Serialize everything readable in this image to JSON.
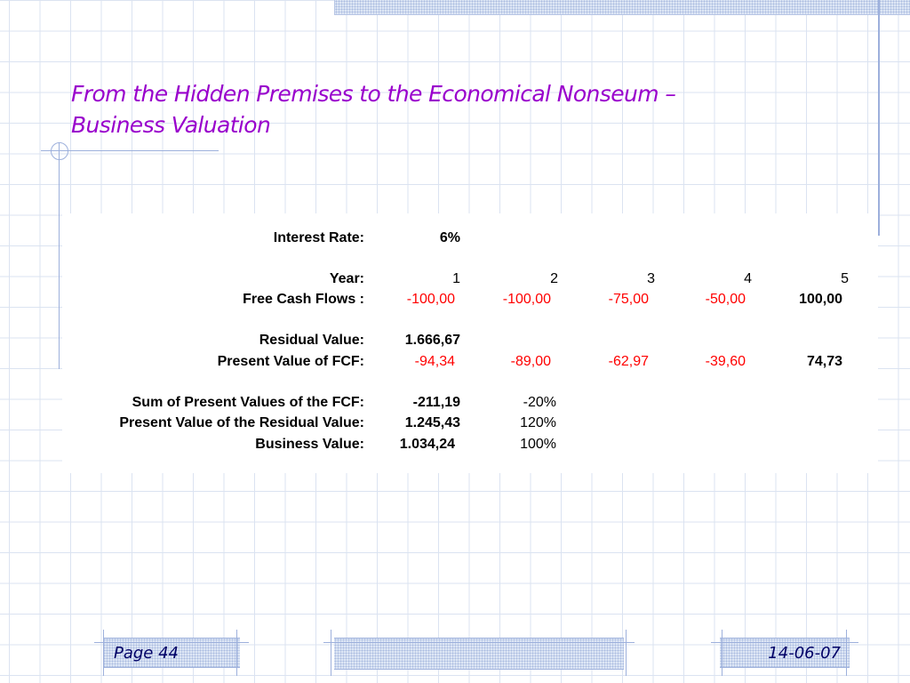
{
  "slide": {
    "title_line1": "From the Hidden Premises to the Economical Nonseum –",
    "title_line2": "Business Valuation"
  },
  "valuation": {
    "interest_rate": {
      "label": "Interest Rate:",
      "value": "6%"
    },
    "year": {
      "label": "Year:",
      "values": [
        "1",
        "2",
        "3",
        "4",
        "5"
      ]
    },
    "free_cash_flows": {
      "label": "Free Cash Flows :",
      "values": [
        "-100,00",
        "-100,00",
        "-75,00",
        "-50,00",
        "100,00"
      ]
    },
    "residual_value": {
      "label": "Residual Value:",
      "value": "1.666,67"
    },
    "present_value_fcf": {
      "label": "Present Value of FCF:",
      "values": [
        "-94,34",
        "-89,00",
        "-62,97",
        "-39,60",
        "74,73"
      ]
    },
    "sum_pv_fcf": {
      "label": "Sum of Present Values of the FCF:",
      "value": "-211,19",
      "percent": "-20%"
    },
    "pv_residual": {
      "label": "Present Value of the Residual Value:",
      "value": "1.245,43",
      "percent": "120%"
    },
    "business_value": {
      "label": "Business Value:",
      "value": "1.034,24",
      "percent": "100%"
    }
  },
  "footer": {
    "page_label": "Page 44",
    "date": "14-06-07"
  },
  "colors": {
    "title": "#9900cc",
    "negative": "#ff0000",
    "grid": "#dbe3f1",
    "accent_line": "#9db0dc"
  }
}
